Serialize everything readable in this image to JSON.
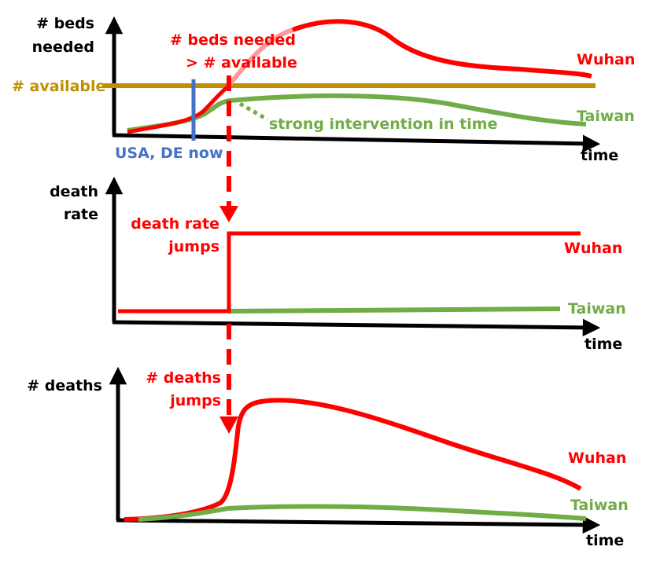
{
  "colors": {
    "axis": "#000000",
    "wuhan": "#ff0000",
    "wuhan_light": "#ff9a9a",
    "taiwan": "#70ad47",
    "available": "#bf9000",
    "now_marker": "#4472c4",
    "arrow": "#ff0000"
  },
  "panel1": {
    "y_label_line1": "# beds",
    "y_label_line2": "needed",
    "x_label": "time",
    "available_label": "# available",
    "now_label": "USA, DE now",
    "annotation_line1": "# beds needed",
    "annotation_line2": "> # available",
    "intervention_label": "strong intervention in time",
    "wuhan_label": "Wuhan",
    "taiwan_label": "Taiwan"
  },
  "panel2": {
    "y_label_line1": "death",
    "y_label_line2": "rate",
    "x_label": "time",
    "annotation_line1": "death rate",
    "annotation_line2": "jumps",
    "wuhan_label": "Wuhan",
    "taiwan_label": "Taiwan"
  },
  "panel3": {
    "y_label": "# deaths",
    "x_label": "time",
    "annotation_line1": "# deaths",
    "annotation_line2": "jumps",
    "wuhan_label": "Wuhan",
    "taiwan_label": "Taiwan"
  }
}
